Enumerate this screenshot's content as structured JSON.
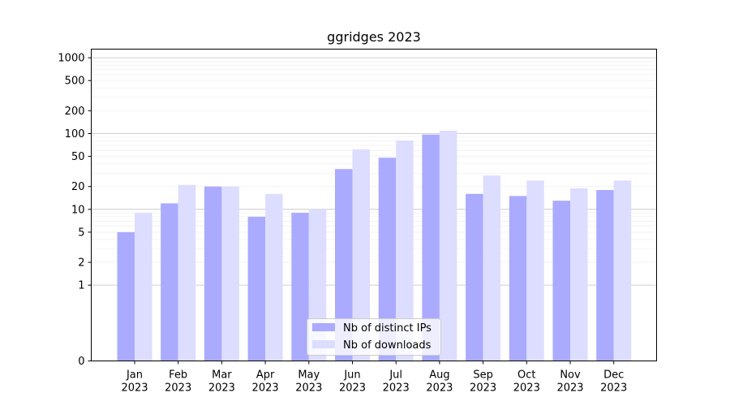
{
  "chart_data": {
    "type": "bar",
    "title": "ggridges 2023",
    "xlabel": "",
    "ylabel": "",
    "yscale": "symlog",
    "ylim": [
      0,
      1300
    ],
    "yticks": [
      "0",
      "1",
      "2",
      "5",
      "10",
      "20",
      "50",
      "100",
      "200",
      "500",
      "1000"
    ],
    "grid": "horizontal, major and minor",
    "legend_position": "lower-center",
    "categories": [
      [
        "Jan",
        "2023"
      ],
      [
        "Feb",
        "2023"
      ],
      [
        "Mar",
        "2023"
      ],
      [
        "Apr",
        "2023"
      ],
      [
        "May",
        "2023"
      ],
      [
        "Jun",
        "2023"
      ],
      [
        "Jul",
        "2023"
      ],
      [
        "Aug",
        "2023"
      ],
      [
        "Sep",
        "2023"
      ],
      [
        "Oct",
        "2023"
      ],
      [
        "Nov",
        "2023"
      ],
      [
        "Dec",
        "2023"
      ]
    ],
    "series": [
      {
        "name": "Nb of distinct IPs",
        "color": "#aaaaff",
        "values": [
          5,
          12,
          20,
          8,
          9,
          34,
          48,
          97,
          16,
          15,
          13,
          18
        ]
      },
      {
        "name": "Nb of downloads",
        "color": "#ddddff",
        "values": [
          9,
          21,
          20,
          16,
          10,
          62,
          81,
          109,
          28,
          24,
          19,
          24
        ]
      }
    ]
  }
}
